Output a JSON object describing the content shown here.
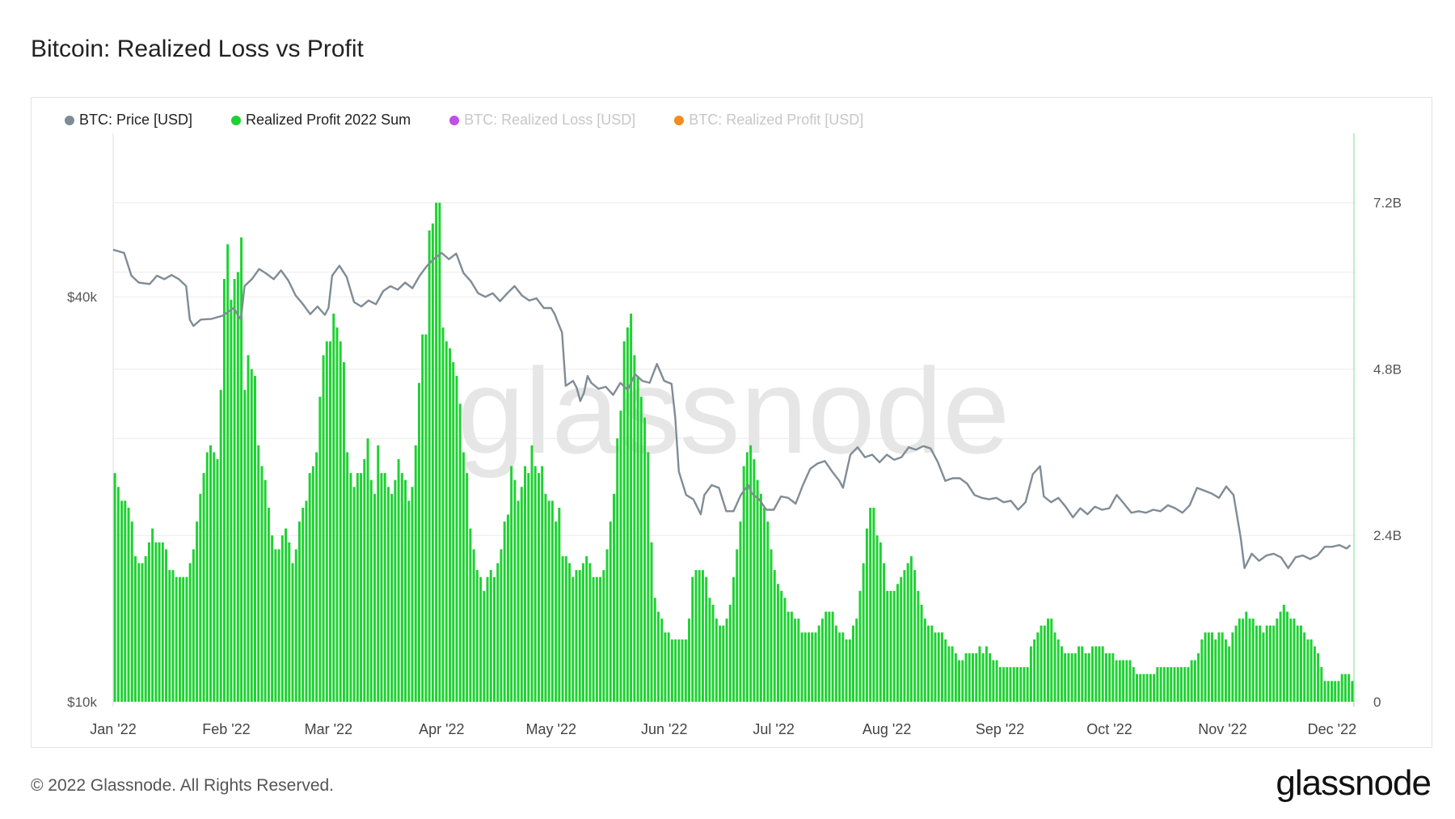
{
  "title": "Bitcoin: Realized Loss vs Profit",
  "footer": "© 2022 Glassnode. All Rights Reserved.",
  "brand": "glassnode",
  "watermark": "glassnode",
  "legend": [
    {
      "label": "BTC: Price [USD]",
      "color": "#7f8c95",
      "active": true
    },
    {
      "label": "Realized Profit 2022 Sum",
      "color": "#1ed132",
      "active": true
    },
    {
      "label": "BTC: Realized Loss [USD]",
      "color": "#c050e8",
      "active": false
    },
    {
      "label": "BTC: Realized Profit [USD]",
      "color": "#f28c1c",
      "active": false
    }
  ],
  "chart_data": {
    "type": "bar+line",
    "x_labels": [
      "Jan '22",
      "Feb '22",
      "Mar '22",
      "Apr '22",
      "May '22",
      "Jun '22",
      "Jul '22",
      "Aug '22",
      "Sep '22",
      "Oct '22",
      "Nov '22",
      "Dec '22"
    ],
    "x_label_days": [
      0,
      31,
      59,
      90,
      120,
      151,
      181,
      212,
      243,
      273,
      304,
      334
    ],
    "left_axis": {
      "scale": "log",
      "ticks": [
        "$10k",
        "$40k"
      ],
      "tick_values": [
        10000,
        40000
      ],
      "range": [
        10000,
        70000
      ]
    },
    "right_axis": {
      "ticks": [
        "0",
        "2.4B",
        "4.8B",
        "7.2B"
      ],
      "tick_values": [
        0,
        2.4,
        4.8,
        7.2
      ],
      "range": [
        0,
        8.2
      ],
      "unit": "B"
    },
    "colors": {
      "price": "#7f8c95",
      "profit": "#1ed132"
    },
    "price_series": {
      "name": "BTC: Price [USD]",
      "points": [
        [
          0,
          47000
        ],
        [
          3,
          46500
        ],
        [
          5,
          43000
        ],
        [
          7,
          42000
        ],
        [
          10,
          41800
        ],
        [
          12,
          43000
        ],
        [
          14,
          42500
        ],
        [
          16,
          43100
        ],
        [
          18,
          42500
        ],
        [
          20,
          41500
        ],
        [
          21,
          37000
        ],
        [
          22,
          36200
        ],
        [
          24,
          37000
        ],
        [
          27,
          37100
        ],
        [
          30,
          37500
        ],
        [
          33,
          38500
        ],
        [
          35,
          37000
        ],
        [
          36,
          41500
        ],
        [
          38,
          42500
        ],
        [
          40,
          44000
        ],
        [
          42,
          43300
        ],
        [
          44,
          42500
        ],
        [
          46,
          43800
        ],
        [
          48,
          42300
        ],
        [
          50,
          40200
        ],
        [
          52,
          39000
        ],
        [
          54,
          37700
        ],
        [
          56,
          38700
        ],
        [
          58,
          37600
        ],
        [
          59,
          38500
        ],
        [
          60,
          43000
        ],
        [
          62,
          44500
        ],
        [
          64,
          42800
        ],
        [
          66,
          39300
        ],
        [
          68,
          38700
        ],
        [
          70,
          39500
        ],
        [
          72,
          39000
        ],
        [
          74,
          40800
        ],
        [
          76,
          41500
        ],
        [
          78,
          41000
        ],
        [
          80,
          42000
        ],
        [
          82,
          41200
        ],
        [
          84,
          43000
        ],
        [
          86,
          44500
        ],
        [
          88,
          45600
        ],
        [
          90,
          46500
        ],
        [
          92,
          45500
        ],
        [
          94,
          46400
        ],
        [
          96,
          43400
        ],
        [
          98,
          42200
        ],
        [
          100,
          40500
        ],
        [
          102,
          40000
        ],
        [
          104,
          40500
        ],
        [
          106,
          39400
        ],
        [
          108,
          40500
        ],
        [
          110,
          41500
        ],
        [
          112,
          40200
        ],
        [
          114,
          39500
        ],
        [
          116,
          39800
        ],
        [
          118,
          38500
        ],
        [
          120,
          38500
        ],
        [
          121,
          37700
        ],
        [
          122,
          36500
        ],
        [
          123,
          35400
        ],
        [
          124,
          29500
        ],
        [
          126,
          30000
        ],
        [
          127,
          29300
        ],
        [
          128,
          28000
        ],
        [
          129,
          28800
        ],
        [
          130,
          30500
        ],
        [
          131,
          29800
        ],
        [
          133,
          29200
        ],
        [
          135,
          29400
        ],
        [
          137,
          28600
        ],
        [
          139,
          29800
        ],
        [
          141,
          29100
        ],
        [
          143,
          30700
        ],
        [
          145,
          30000
        ],
        [
          147,
          29800
        ],
        [
          149,
          31800
        ],
        [
          151,
          30000
        ],
        [
          153,
          29700
        ],
        [
          154,
          26500
        ],
        [
          155,
          22000
        ],
        [
          157,
          20300
        ],
        [
          159,
          20000
        ],
        [
          161,
          19000
        ],
        [
          162,
          20300
        ],
        [
          164,
          21000
        ],
        [
          166,
          20800
        ],
        [
          168,
          19200
        ],
        [
          170,
          19200
        ],
        [
          172,
          20300
        ],
        [
          174,
          21000
        ],
        [
          175,
          20400
        ],
        [
          177,
          20000
        ],
        [
          179,
          19300
        ],
        [
          181,
          19300
        ],
        [
          183,
          20200
        ],
        [
          185,
          20100
        ],
        [
          187,
          19700
        ],
        [
          189,
          21000
        ],
        [
          191,
          22200
        ],
        [
          193,
          22600
        ],
        [
          195,
          22800
        ],
        [
          197,
          22000
        ],
        [
          199,
          21300
        ],
        [
          200,
          20800
        ],
        [
          202,
          23300
        ],
        [
          204,
          23900
        ],
        [
          206,
          23100
        ],
        [
          208,
          23300
        ],
        [
          210,
          22700
        ],
        [
          212,
          23300
        ],
        [
          214,
          22900
        ],
        [
          216,
          23100
        ],
        [
          218,
          23900
        ],
        [
          220,
          23700
        ],
        [
          222,
          24000
        ],
        [
          224,
          23800
        ],
        [
          226,
          22700
        ],
        [
          228,
          21300
        ],
        [
          230,
          21500
        ],
        [
          232,
          21500
        ],
        [
          234,
          21100
        ],
        [
          236,
          20300
        ],
        [
          238,
          20100
        ],
        [
          240,
          20000
        ],
        [
          242,
          20100
        ],
        [
          244,
          19800
        ],
        [
          246,
          19900
        ],
        [
          248,
          19300
        ],
        [
          250,
          19800
        ],
        [
          252,
          21800
        ],
        [
          254,
          22400
        ],
        [
          255,
          20200
        ],
        [
          257,
          19800
        ],
        [
          259,
          20100
        ],
        [
          261,
          19500
        ],
        [
          263,
          18800
        ],
        [
          265,
          19400
        ],
        [
          267,
          19000
        ],
        [
          269,
          19500
        ],
        [
          271,
          19300
        ],
        [
          273,
          19400
        ],
        [
          275,
          20300
        ],
        [
          277,
          19700
        ],
        [
          279,
          19100
        ],
        [
          281,
          19200
        ],
        [
          283,
          19100
        ],
        [
          285,
          19300
        ],
        [
          287,
          19200
        ],
        [
          289,
          19600
        ],
        [
          291,
          19400
        ],
        [
          293,
          19100
        ],
        [
          295,
          19600
        ],
        [
          297,
          20800
        ],
        [
          299,
          20600
        ],
        [
          301,
          20400
        ],
        [
          303,
          20100
        ],
        [
          305,
          20900
        ],
        [
          307,
          20300
        ],
        [
          309,
          17500
        ],
        [
          310,
          15800
        ],
        [
          312,
          16600
        ],
        [
          314,
          16200
        ],
        [
          316,
          16500
        ],
        [
          318,
          16600
        ],
        [
          320,
          16400
        ],
        [
          322,
          15800
        ],
        [
          324,
          16400
        ],
        [
          326,
          16500
        ],
        [
          328,
          16300
        ],
        [
          330,
          16500
        ],
        [
          332,
          17000
        ],
        [
          334,
          17000
        ],
        [
          336,
          17100
        ],
        [
          338,
          16900
        ],
        [
          339,
          17100
        ]
      ]
    },
    "profit_series": {
      "name": "Realized Profit 2022 Sum",
      "unit": "B USD",
      "values": [
        3.3,
        3.1,
        2.9,
        2.9,
        2.8,
        2.6,
        2.1,
        2.0,
        2.0,
        2.1,
        2.3,
        2.5,
        2.3,
        2.3,
        2.3,
        2.2,
        1.9,
        1.9,
        1.8,
        1.8,
        1.8,
        1.8,
        2.0,
        2.2,
        2.6,
        3.0,
        3.3,
        3.6,
        3.7,
        3.6,
        3.5,
        4.5,
        6.1,
        6.6,
        5.8,
        6.1,
        6.2,
        6.7,
        4.5,
        5.0,
        4.8,
        4.7,
        3.7,
        3.4,
        3.2,
        2.8,
        2.4,
        2.2,
        2.2,
        2.4,
        2.5,
        2.3,
        2.0,
        2.2,
        2.6,
        2.8,
        2.9,
        3.3,
        3.4,
        3.6,
        4.4,
        5.0,
        5.2,
        5.2,
        5.6,
        5.4,
        5.2,
        4.9,
        3.6,
        3.3,
        3.1,
        3.3,
        3.3,
        3.5,
        3.8,
        3.2,
        3.0,
        3.7,
        3.3,
        3.3,
        3.1,
        3.0,
        3.2,
        3.5,
        3.3,
        3.2,
        2.9,
        3.1,
        3.7,
        4.6,
        5.3,
        5.3,
        6.8,
        6.9,
        7.2,
        7.2,
        5.4,
        5.2,
        5.1,
        4.9,
        4.7,
        4.3,
        3.6,
        3.3,
        2.5,
        2.2,
        1.9,
        1.8,
        1.6,
        1.8,
        1.9,
        1.8,
        2.0,
        2.2,
        2.6,
        2.7,
        3.4,
        3.2,
        2.9,
        3.1,
        3.4,
        3.3,
        3.7,
        3.4,
        3.3,
        3.4,
        3.0,
        2.9,
        2.9,
        2.6,
        2.8,
        2.1,
        2.1,
        2.0,
        1.8,
        1.9,
        1.9,
        2.0,
        2.1,
        2.0,
        1.8,
        1.8,
        1.8,
        1.9,
        2.2,
        2.6,
        3.0,
        3.8,
        4.2,
        5.2,
        5.4,
        5.6,
        5.0,
        4.7,
        4.4,
        4.1,
        3.6,
        2.3,
        1.5,
        1.3,
        1.2,
        1.0,
        1.0,
        0.9,
        0.9,
        0.9,
        0.9,
        0.9,
        1.2,
        1.8,
        1.9,
        1.9,
        1.9,
        1.8,
        1.5,
        1.4,
        1.2,
        1.1,
        1.1,
        1.2,
        1.4,
        1.8,
        2.2,
        2.6,
        3.4,
        3.6,
        3.7,
        3.5,
        3.2,
        3.0,
        2.8,
        2.6,
        2.2,
        1.9,
        1.7,
        1.6,
        1.5,
        1.3,
        1.3,
        1.2,
        1.2,
        1.0,
        1.0,
        1.0,
        1.0,
        1.0,
        1.1,
        1.2,
        1.3,
        1.3,
        1.3,
        1.1,
        1.0,
        1.0,
        0.9,
        0.9,
        1.1,
        1.2,
        1.6,
        2.0,
        2.5,
        2.8,
        2.8,
        2.4,
        2.3,
        2.0,
        1.6,
        1.6,
        1.6,
        1.7,
        1.8,
        1.9,
        2.0,
        2.1,
        1.9,
        1.6,
        1.4,
        1.2,
        1.1,
        1.1,
        1.0,
        1.0,
        1.0,
        0.9,
        0.8,
        0.8,
        0.7,
        0.6,
        0.6,
        0.7,
        0.7,
        0.7,
        0.7,
        0.8,
        0.7,
        0.8,
        0.7,
        0.6,
        0.6,
        0.5,
        0.5,
        0.5,
        0.5,
        0.5,
        0.5,
        0.5,
        0.5,
        0.5,
        0.8,
        0.9,
        1.0,
        1.1,
        1.1,
        1.2,
        1.2,
        1.0,
        0.9,
        0.8,
        0.7,
        0.7,
        0.7,
        0.7,
        0.8,
        0.8,
        0.7,
        0.7,
        0.8,
        0.8,
        0.8,
        0.8,
        0.7,
        0.7,
        0.7,
        0.6,
        0.6,
        0.6,
        0.6,
        0.6,
        0.5,
        0.4,
        0.4,
        0.4,
        0.4,
        0.4,
        0.4,
        0.5,
        0.5,
        0.5,
        0.5,
        0.5,
        0.5,
        0.5,
        0.5,
        0.5,
        0.5,
        0.6,
        0.6,
        0.7,
        0.9,
        1.0,
        1.0,
        1.0,
        0.9,
        1.0,
        1.0,
        0.9,
        0.8,
        1.0,
        1.1,
        1.2,
        1.2,
        1.3,
        1.2,
        1.2,
        1.1,
        1.1,
        1.0,
        1.1,
        1.1,
        1.1,
        1.2,
        1.3,
        1.4,
        1.3,
        1.2,
        1.2,
        1.1,
        1.1,
        1.0,
        0.9,
        0.9,
        0.8,
        0.7,
        0.5,
        0.3,
        0.3,
        0.3,
        0.3,
        0.3,
        0.4,
        0.4,
        0.4,
        0.3
      ]
    }
  }
}
